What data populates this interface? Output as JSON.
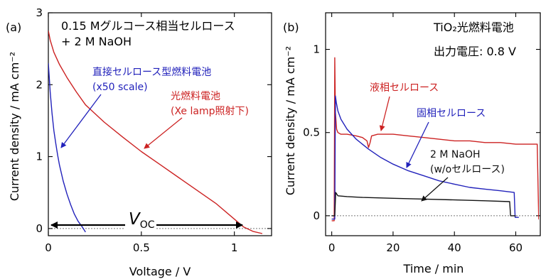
{
  "chart_data": [
    {
      "type": "line",
      "panel_label": "(a)",
      "xlabel": "Voltage / V",
      "ylabel": "Current density / mA cm⁻²",
      "xlim": [
        0,
        1.2
      ],
      "ylim": [
        -0.1,
        3.0
      ],
      "xticks": [
        0,
        0.5,
        1
      ],
      "xtick_labels": [
        "0",
        "0.5",
        "1"
      ],
      "yticks": [
        0,
        1,
        2,
        3
      ],
      "ytick_labels": [
        "0",
        "1",
        "2",
        "3"
      ],
      "legend_text": [
        "0.15 Mグルコース相当セルロース",
        "+ 2 M NaOH"
      ],
      "voc_label_main": "V",
      "voc_label_sub": "OC",
      "series": [
        {
          "name": "光燃料電池",
          "color": "#cc2222",
          "x": [
            0.0,
            0.01,
            0.03,
            0.06,
            0.1,
            0.15,
            0.2,
            0.3,
            0.4,
            0.5,
            0.6,
            0.7,
            0.8,
            0.9,
            1.0,
            1.05,
            1.1,
            1.15
          ],
          "y": [
            2.75,
            2.62,
            2.45,
            2.28,
            2.1,
            1.9,
            1.72,
            1.48,
            1.27,
            1.07,
            0.89,
            0.71,
            0.53,
            0.35,
            0.13,
            0.02,
            -0.04,
            -0.07
          ]
        },
        {
          "name": "直接セルロース型燃料電池",
          "color": "#2222bb",
          "x": [
            0.0,
            0.005,
            0.01,
            0.02,
            0.03,
            0.04,
            0.05,
            0.06,
            0.08,
            0.1,
            0.12,
            0.14,
            0.16,
            0.18,
            0.2
          ],
          "y": [
            2.3,
            2.1,
            1.9,
            1.6,
            1.36,
            1.18,
            1.02,
            0.88,
            0.66,
            0.48,
            0.33,
            0.2,
            0.1,
            0.03,
            -0.05
          ]
        }
      ],
      "annotations": [
        {
          "lines": [
            "直接セルロース型燃料電池",
            "(x50 scale)"
          ],
          "color": "#2222bb"
        },
        {
          "lines": [
            "光燃料電池",
            "(Xe lamp照射下)"
          ],
          "color": "#cc2222"
        }
      ]
    },
    {
      "type": "line",
      "panel_label": "(b)",
      "xlabel": "Time / min",
      "ylabel": "Current density / mA cm⁻²",
      "xlim": [
        -2,
        68
      ],
      "ylim": [
        -0.12,
        1.22
      ],
      "xticks": [
        0,
        20,
        40,
        60
      ],
      "xtick_labels": [
        "0",
        "20",
        "40",
        "60"
      ],
      "yticks": [
        0,
        0.5,
        1
      ],
      "ytick_labels": [
        "0",
        "0.5",
        "1"
      ],
      "legend_text": [
        "TiO₂光燃料電池",
        "出力電圧: 0.8 V"
      ],
      "series": [
        {
          "name": "液相セルロース",
          "color": "#cc2222",
          "x": [
            0,
            0.8,
            1.0,
            1.2,
            1.6,
            2,
            3,
            5,
            8,
            10,
            11.5,
            12,
            12.5,
            13,
            15,
            20,
            25,
            30,
            35,
            40,
            45,
            50,
            55,
            60,
            65,
            67,
            67.5,
            68
          ],
          "y": [
            -0.03,
            -0.03,
            0.95,
            0.62,
            0.52,
            0.5,
            0.49,
            0.49,
            0.48,
            0.47,
            0.45,
            0.41,
            0.44,
            0.48,
            0.49,
            0.49,
            0.48,
            0.47,
            0.46,
            0.45,
            0.45,
            0.44,
            0.44,
            0.43,
            0.43,
            0.43,
            -0.02,
            -0.02
          ]
        },
        {
          "name": "固相セルロース",
          "color": "#2222bb",
          "x": [
            0,
            1.0,
            1.2,
            1.5,
            2,
            3,
            5,
            8,
            12,
            16,
            20,
            25,
            30,
            35,
            40,
            45,
            50,
            55,
            59.5,
            59.8,
            61
          ],
          "y": [
            -0.02,
            -0.02,
            0.72,
            0.68,
            0.63,
            0.58,
            0.52,
            0.46,
            0.4,
            0.35,
            0.31,
            0.27,
            0.24,
            0.21,
            0.19,
            0.17,
            0.16,
            0.15,
            0.14,
            -0.01,
            -0.01
          ]
        },
        {
          "name": "2 M NaOH (w/oセルロース)",
          "color": "#111111",
          "x": [
            0,
            1.0,
            1.3,
            2,
            5,
            10,
            20,
            30,
            40,
            50,
            58,
            58.3,
            60
          ],
          "y": [
            0.0,
            0.0,
            0.14,
            0.12,
            0.115,
            0.11,
            0.105,
            0.1,
            0.095,
            0.09,
            0.085,
            0.0,
            0.0
          ]
        }
      ],
      "annotations": [
        {
          "lines": [
            "液相セルロース"
          ],
          "color": "#cc2222"
        },
        {
          "lines": [
            "固相セルロース"
          ],
          "color": "#2222bb"
        },
        {
          "lines": [
            "2 M NaOH",
            "(w/oセルロース)"
          ],
          "color": "#111111"
        }
      ]
    }
  ]
}
